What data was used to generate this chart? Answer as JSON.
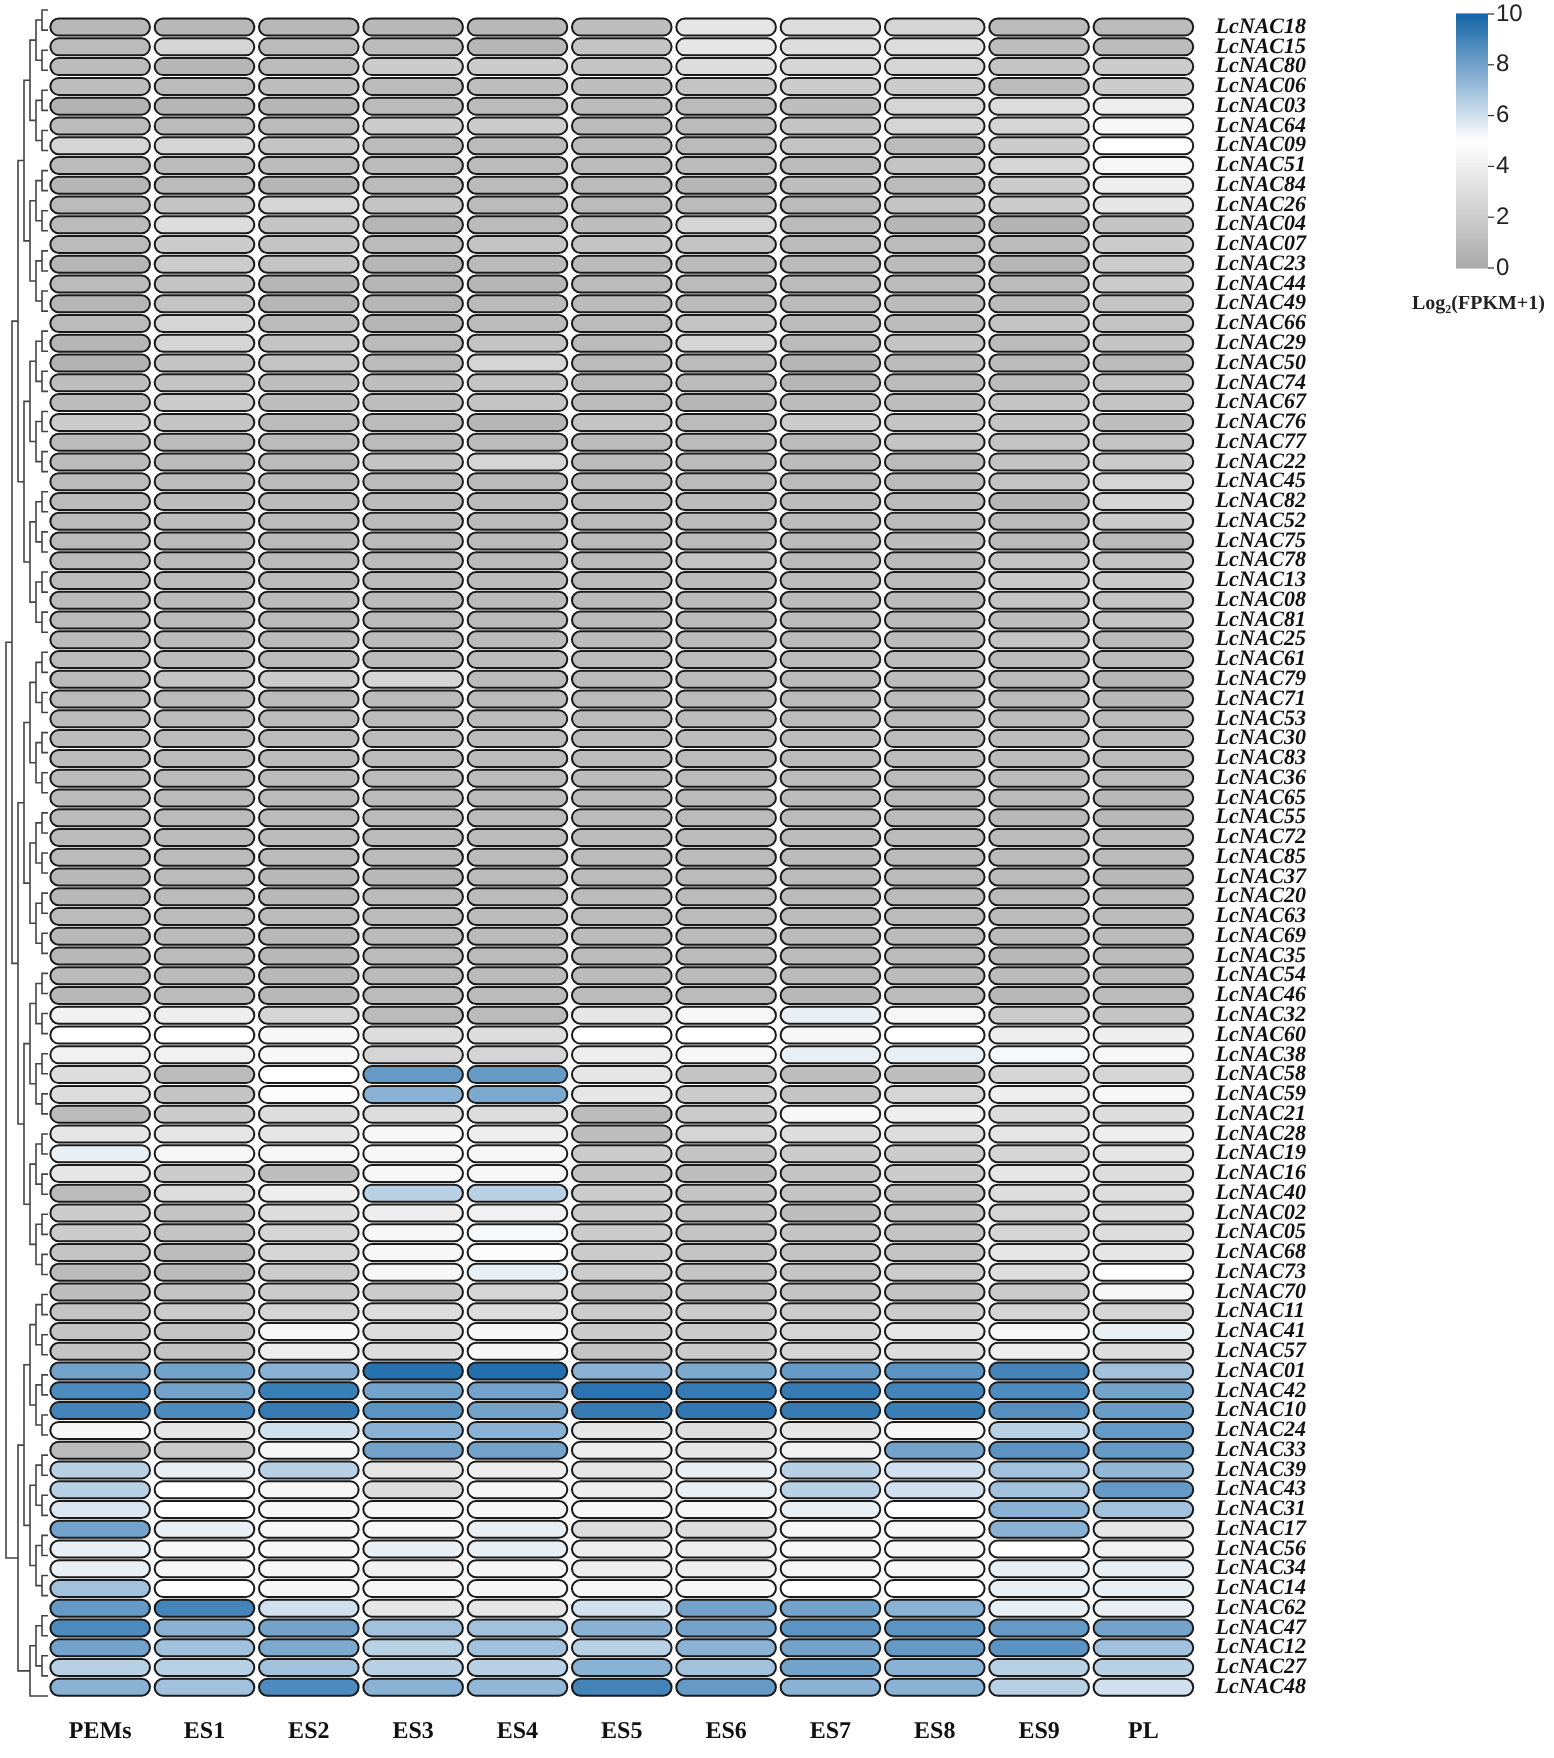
{
  "chart_data": {
    "type": "heatmap",
    "categories": [
      "PEMs",
      "ES1",
      "ES2",
      "ES3",
      "ES4",
      "ES5",
      "ES6",
      "ES7",
      "ES8",
      "ES9",
      "PL"
    ],
    "y_categories": [
      "LcNAC18",
      "LcNAC15",
      "LcNAC80",
      "LcNAC06",
      "LcNAC03",
      "LcNAC64",
      "LcNAC09",
      "LcNAC51",
      "LcNAC84",
      "LcNAC26",
      "LcNAC04",
      "LcNAC07",
      "LcNAC23",
      "LcNAC44",
      "LcNAC49",
      "LcNAC66",
      "LcNAC29",
      "LcNAC50",
      "LcNAC74",
      "LcNAC67",
      "LcNAC76",
      "LcNAC77",
      "LcNAC22",
      "LcNAC45",
      "LcNAC82",
      "LcNAC52",
      "LcNAC75",
      "LcNAC78",
      "LcNAC13",
      "LcNAC08",
      "LcNAC81",
      "LcNAC25",
      "LcNAC61",
      "LcNAC79",
      "LcNAC71",
      "LcNAC53",
      "LcNAC30",
      "LcNAC83",
      "LcNAC36",
      "LcNAC65",
      "LcNAC55",
      "LcNAC72",
      "LcNAC85",
      "LcNAC37",
      "LcNAC20",
      "LcNAC63",
      "LcNAC69",
      "LcNAC35",
      "LcNAC54",
      "LcNAC46",
      "LcNAC32",
      "LcNAC60",
      "LcNAC38",
      "LcNAC58",
      "LcNAC59",
      "LcNAC21",
      "LcNAC28",
      "LcNAC19",
      "LcNAC16",
      "LcNAC40",
      "LcNAC02",
      "LcNAC05",
      "LcNAC68",
      "LcNAC73",
      "LcNAC70",
      "LcNAC11",
      "LcNAC41",
      "LcNAC57",
      "LcNAC01",
      "LcNAC42",
      "LcNAC10",
      "LcNAC24",
      "LcNAC33",
      "LcNAC39",
      "LcNAC43",
      "LcNAC31",
      "LcNAC17",
      "LcNAC56",
      "LcNAC34",
      "LcNAC14",
      "LcNAC62",
      "LcNAC47",
      "LcNAC12",
      "LcNAC27",
      "LcNAC48"
    ],
    "cells": [
      [
        0.8,
        0.8,
        0.8,
        0.8,
        0.8,
        1.2,
        3.5,
        3,
        2.5,
        1,
        1
      ],
      [
        1,
        2.5,
        1,
        1,
        0.7,
        1.5,
        3.5,
        3,
        3,
        1.2,
        1
      ],
      [
        1,
        0.7,
        1,
        2,
        2,
        1.5,
        3,
        2.5,
        2.5,
        1.5,
        2
      ],
      [
        1.2,
        1,
        1.2,
        1,
        1.2,
        1.2,
        1.5,
        2,
        2,
        1,
        2
      ],
      [
        0.5,
        0.7,
        0.7,
        1,
        1,
        1,
        1,
        1.2,
        2.5,
        3,
        4
      ],
      [
        1,
        1,
        1,
        2,
        2,
        1,
        1,
        1.5,
        2.5,
        2.5,
        4.5
      ],
      [
        2.5,
        2.5,
        1.5,
        1,
        1,
        1,
        1,
        1.5,
        1,
        2,
        5
      ],
      [
        1,
        1,
        1,
        1,
        1,
        1,
        1,
        1,
        1.5,
        2.5,
        4.5
      ],
      [
        0.7,
        1,
        0.7,
        1,
        1,
        1,
        0.7,
        1.2,
        1,
        2,
        4
      ],
      [
        1,
        1.5,
        2.5,
        1.5,
        1,
        1,
        1,
        1,
        1.5,
        2,
        3.5
      ],
      [
        1,
        3,
        1.5,
        0.7,
        1,
        1.2,
        2.5,
        1,
        0.7,
        0.5,
        1.5
      ],
      [
        1,
        2,
        1.5,
        1,
        1.5,
        1.5,
        1.5,
        1,
        1,
        1,
        2
      ],
      [
        0.7,
        2,
        1.5,
        0.7,
        1,
        1,
        1,
        1,
        1,
        0.7,
        2
      ],
      [
        1,
        1.5,
        0.7,
        0.7,
        0.7,
        1,
        1,
        1,
        1,
        1,
        2
      ],
      [
        0.7,
        1.5,
        0.7,
        0.7,
        1,
        1,
        1,
        1,
        1,
        1,
        1.5
      ],
      [
        1,
        2.5,
        1,
        0.7,
        1,
        1,
        1.5,
        1,
        1,
        1.5,
        1.5
      ],
      [
        0.7,
        2.5,
        1.5,
        1,
        1.5,
        1,
        2.5,
        1,
        1.5,
        1,
        1.5
      ],
      [
        0.5,
        1.5,
        1.5,
        1,
        2.5,
        1,
        1,
        0.7,
        1,
        1,
        1
      ],
      [
        1.2,
        1.5,
        1.2,
        1.2,
        1.5,
        1,
        1,
        0.7,
        1,
        1,
        1.5
      ],
      [
        1,
        2,
        1.2,
        1.2,
        1.5,
        1,
        0.7,
        1,
        1.2,
        1.5,
        1.5
      ],
      [
        2,
        1.5,
        1,
        1,
        0.7,
        1.5,
        1,
        2,
        1.5,
        1.5,
        1.2
      ],
      [
        1,
        1,
        1,
        1,
        1,
        1,
        1,
        1,
        1.5,
        1.5,
        1.5
      ],
      [
        1,
        1,
        1,
        1.5,
        2.5,
        1,
        1,
        1,
        1,
        1.5,
        2
      ],
      [
        1,
        1.2,
        1,
        1,
        1,
        1,
        1,
        1,
        1,
        1.5,
        2.5
      ],
      [
        1,
        1.2,
        1,
        1,
        1,
        1,
        1,
        1,
        1,
        0.7,
        2.5
      ],
      [
        1,
        1.2,
        1,
        1,
        1,
        1,
        1,
        1,
        1,
        1,
        2
      ],
      [
        1,
        1,
        1,
        1,
        1,
        1,
        1,
        1,
        1.2,
        1,
        1
      ],
      [
        1,
        1,
        1,
        1,
        1,
        1,
        1.5,
        1,
        1,
        1.5,
        1.5
      ],
      [
        1,
        1,
        1,
        1,
        1,
        1,
        1,
        1,
        1,
        2,
        2
      ],
      [
        1,
        1,
        1,
        1,
        1,
        1,
        1,
        1,
        1,
        1.5,
        1.5
      ],
      [
        1,
        1,
        1,
        1,
        1,
        1,
        1,
        1,
        1,
        1.2,
        1.5
      ],
      [
        1,
        1,
        1,
        1,
        1,
        1,
        1,
        1,
        1,
        1.5,
        1
      ],
      [
        1,
        1,
        1,
        1,
        1,
        1,
        1,
        1,
        1,
        1,
        1
      ],
      [
        1,
        1.5,
        2,
        2.5,
        1,
        1,
        1,
        1,
        1,
        1,
        0.7
      ],
      [
        1,
        1,
        1,
        1,
        1,
        1,
        1,
        1,
        1,
        1,
        0.8
      ],
      [
        1,
        1,
        1,
        1,
        1,
        1,
        1,
        1,
        1,
        1,
        1
      ],
      [
        1,
        1,
        1,
        1,
        1,
        1,
        1,
        1,
        1,
        1,
        1
      ],
      [
        1,
        1,
        1,
        1,
        1,
        1,
        1,
        1,
        1,
        1,
        1
      ],
      [
        1,
        1,
        1,
        1,
        1,
        1,
        1,
        1,
        1,
        1,
        1
      ],
      [
        1,
        1,
        1,
        1,
        1,
        1,
        1,
        1,
        1,
        1,
        0.8
      ],
      [
        1,
        1,
        1,
        1,
        1,
        1,
        1,
        1,
        1,
        0.8,
        0.8
      ],
      [
        1,
        1,
        1,
        1,
        1,
        1,
        1,
        1,
        1,
        1,
        1
      ],
      [
        1,
        1,
        1,
        1,
        1,
        1,
        1,
        1,
        1,
        1,
        1
      ],
      [
        0.8,
        1,
        0.8,
        0.8,
        1,
        1,
        1,
        1,
        1,
        1,
        0.8
      ],
      [
        0.8,
        1,
        0.8,
        1,
        1,
        1,
        1,
        1,
        1,
        1,
        1
      ],
      [
        1,
        1,
        1,
        1,
        1,
        1,
        1,
        1,
        1,
        1,
        1
      ],
      [
        0.8,
        1,
        0.8,
        1,
        1,
        1,
        1,
        1,
        1,
        1,
        1
      ],
      [
        0.8,
        1,
        0.8,
        1,
        1,
        1,
        1,
        1,
        1,
        0.8,
        1
      ],
      [
        1,
        1,
        0.8,
        1,
        1,
        1,
        1,
        1,
        1,
        1,
        1
      ],
      [
        0.8,
        1,
        0.8,
        1,
        1,
        1,
        1,
        0.8,
        1,
        0.8,
        1
      ],
      [
        4.2,
        4,
        2.5,
        1,
        1,
        3.5,
        4.5,
        5.5,
        4.5,
        2,
        1.5
      ],
      [
        5,
        5,
        4.5,
        3,
        3,
        5,
        5,
        4.5,
        5,
        4,
        4
      ],
      [
        4.2,
        4.2,
        4.5,
        2.5,
        2.5,
        4,
        4.5,
        5.5,
        5.5,
        5.2,
        4.5
      ],
      [
        3,
        1,
        5,
        8.3,
        8.3,
        3.5,
        1.5,
        1.2,
        1.2,
        2.5,
        2.5
      ],
      [
        3,
        1.5,
        4.8,
        7.5,
        7.8,
        3.5,
        2,
        1.5,
        2.5,
        4,
        4.5
      ],
      [
        1,
        2,
        3,
        3,
        3,
        1,
        2,
        4.5,
        4,
        3,
        3
      ],
      [
        3.5,
        3.5,
        3.5,
        4.5,
        4,
        1.2,
        2.5,
        3,
        3,
        3.5,
        4
      ],
      [
        5.5,
        4.5,
        4.5,
        4.5,
        4.5,
        2,
        1.5,
        2,
        2,
        2.5,
        3.5
      ],
      [
        3.5,
        2,
        1.2,
        4.5,
        4.5,
        1.5,
        1.2,
        1.5,
        2,
        3.5,
        3
      ],
      [
        1,
        3,
        4,
        6.5,
        6.5,
        2,
        1.5,
        1.5,
        1.5,
        3,
        3
      ],
      [
        2,
        1.5,
        3,
        4,
        4.2,
        2,
        1.5,
        1.2,
        1.5,
        2.5,
        3
      ],
      [
        2,
        1.5,
        2.5,
        4.5,
        5.2,
        2,
        1.5,
        1.5,
        1.5,
        2.5,
        3
      ],
      [
        1.5,
        1,
        2.5,
        4.5,
        4.8,
        2,
        1.5,
        1.5,
        1.5,
        3.5,
        3.5
      ],
      [
        1,
        1,
        2,
        4.5,
        5.5,
        2,
        1.5,
        1.5,
        2,
        3,
        5
      ],
      [
        1.2,
        1.5,
        2,
        2,
        2.5,
        1.5,
        1.5,
        1.5,
        1.5,
        2,
        4.5
      ],
      [
        1.5,
        2,
        2.5,
        3,
        3,
        2,
        2,
        2,
        2,
        2.5,
        2.5
      ],
      [
        1.5,
        1.5,
        4.5,
        3,
        4.5,
        2,
        2,
        2.5,
        3.5,
        4.5,
        5.5
      ],
      [
        1.5,
        1.5,
        4,
        3,
        4.5,
        1.5,
        2,
        2.5,
        3,
        4,
        3
      ],
      [
        8,
        8,
        7.5,
        9.6,
        9.7,
        7.5,
        7.8,
        8.3,
        8.5,
        9,
        7
      ],
      [
        8.8,
        8,
        9.2,
        8,
        8,
        9.5,
        9.3,
        9.3,
        9,
        8.8,
        8
      ],
      [
        9,
        8.8,
        9.3,
        8.5,
        8,
        9.3,
        9.4,
        9.3,
        9.2,
        8.6,
        8.2
      ],
      [
        4.5,
        3.5,
        6,
        7.5,
        7.5,
        3.5,
        3,
        3.5,
        4.5,
        6.5,
        8.3
      ],
      [
        1,
        1.8,
        4.5,
        8,
        8,
        4,
        3.5,
        4.2,
        8,
        8.5,
        8.3
      ],
      [
        6.5,
        5.5,
        6.5,
        3.5,
        4,
        3.5,
        5.5,
        6.5,
        6,
        7,
        7.3
      ],
      [
        6.5,
        5,
        4.5,
        3,
        4.5,
        4,
        5.5,
        6.5,
        6,
        7,
        8.3
      ],
      [
        5.8,
        5,
        4.5,
        4.5,
        4.5,
        4.5,
        4.5,
        5.5,
        5,
        7.5,
        7
      ],
      [
        8,
        5.5,
        4.5,
        4.5,
        5.5,
        3,
        3,
        4.5,
        4.5,
        7.5,
        3.5
      ],
      [
        5.5,
        4.5,
        4.5,
        5.5,
        5.5,
        4,
        4,
        4.5,
        4.5,
        5,
        4.2
      ],
      [
        5.5,
        4.5,
        4.5,
        4.2,
        4.5,
        4,
        4,
        4.5,
        4.5,
        5.5,
        5.5
      ],
      [
        7,
        5,
        4.5,
        4.5,
        4.5,
        4.5,
        4.5,
        5,
        5,
        5.5,
        5.5
      ],
      [
        8.3,
        9,
        6,
        3.5,
        3.5,
        6,
        8,
        8,
        7.5,
        5.5,
        5.5
      ],
      [
        8.8,
        7.5,
        8,
        7,
        7,
        7.5,
        8,
        8.5,
        8.5,
        8.3,
        8
      ],
      [
        8,
        7,
        7.8,
        6.5,
        7,
        6.5,
        7.5,
        8,
        8.3,
        8.5,
        7
      ],
      [
        6.5,
        6.5,
        7,
        6.5,
        6.5,
        7.5,
        7,
        8,
        7.5,
        6.5,
        6.5
      ],
      [
        7.5,
        7,
        8.8,
        7.5,
        7.3,
        9,
        8.3,
        7.5,
        7.5,
        6.5,
        6
      ]
    ],
    "clim": [
      0,
      10
    ],
    "cticks": [
      0,
      2,
      4,
      6,
      8,
      10
    ],
    "clabel": "Log₂(FPKM+1)",
    "colors": [
      "#aaaaaa",
      "#ffffff",
      "#1565a8"
    ]
  }
}
